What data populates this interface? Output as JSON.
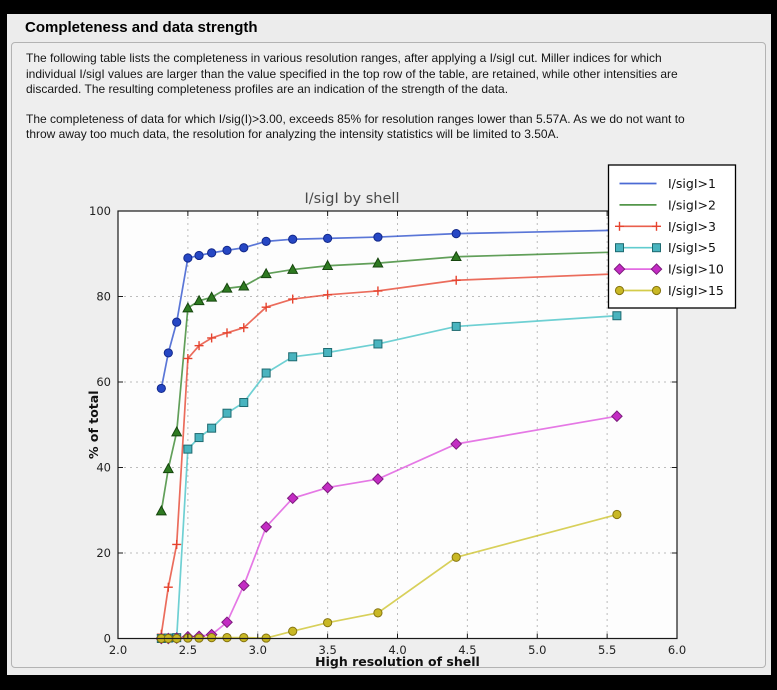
{
  "header": {
    "title": "Completeness and data strength"
  },
  "intro": {
    "p1": [
      "The following table lists the completeness in various resolution ranges, after applying a I/sigI cut. Miller indices for which",
      "individual I/sigI values are larger than the value specified in the top row of the table, are retained, while other intensities are",
      "discarded. The resulting completeness profiles are an indication of the strength of the data."
    ],
    "p2": [
      "The completeness of data for which I/sig(I)>3.00, exceeds  85% for resolution ranges lower than 5.57A. As we do not want to",
      "throw away too much data, the resolution for analyzing the intensity statistics will be limited to 3.50A."
    ]
  },
  "chart_data": {
    "type": "line",
    "title": "I/sigI by shell",
    "xlabel": "High resolution of shell",
    "ylabel": "% of total",
    "xlim": [
      2.0,
      6.0
    ],
    "ylim": [
      0,
      100
    ],
    "xticks": [
      2.0,
      2.5,
      3.0,
      3.5,
      4.0,
      4.5,
      5.0,
      5.5,
      6.0
    ],
    "yticks": [
      0,
      20,
      40,
      60,
      80,
      100
    ],
    "grid": true,
    "legend_position": "top-right",
    "x": [
      2.31,
      2.36,
      2.42,
      2.5,
      2.58,
      2.67,
      2.78,
      2.9,
      3.06,
      3.25,
      3.5,
      3.86,
      4.42,
      5.57
    ],
    "series": [
      {
        "label": "I/sigI>1",
        "color": "#2b50cc",
        "marker": "circle",
        "marker_fill": "#2647c4",
        "marker_edge": "#12288a",
        "legend_markers": false,
        "values": [
          58.5,
          66.8,
          74.0,
          89.0,
          89.6,
          90.2,
          90.8,
          91.4,
          92.9,
          93.4,
          93.6,
          93.9,
          94.7,
          95.5
        ]
      },
      {
        "label": "I/sigI>2",
        "color": "#35842a",
        "marker": "triangle",
        "marker_fill": "#2e7a21",
        "marker_edge": "#16450e",
        "legend_markers": false,
        "values": [
          29.8,
          39.7,
          48.3,
          77.3,
          79.0,
          79.8,
          81.9,
          82.4,
          85.3,
          86.3,
          87.2,
          87.8,
          89.3,
          90.4
        ]
      },
      {
        "label": "I/sigI>3",
        "color": "#e6432e",
        "marker": "plus",
        "marker_fill": "#e6432e",
        "marker_edge": "#e6432e",
        "legend_markers": true,
        "values": [
          1.0,
          12.0,
          22.0,
          65.5,
          68.5,
          70.3,
          71.5,
          72.7,
          77.5,
          79.4,
          80.4,
          81.3,
          83.8,
          85.3
        ]
      },
      {
        "label": "I/sigI>5",
        "color": "#45c3c7",
        "marker": "square",
        "marker_fill": "#49b4bf",
        "marker_edge": "#1e6a70",
        "legend_markers": true,
        "values": [
          0.0,
          0.1,
          0.2,
          44.3,
          47.0,
          49.2,
          52.7,
          55.2,
          62.1,
          65.9,
          66.9,
          68.9,
          73.0,
          75.5
        ]
      },
      {
        "label": "I/sigI>10",
        "color": "#de52de",
        "marker": "diamond",
        "marker_fill": "#c32cc3",
        "marker_edge": "#7d1b7d",
        "legend_markers": true,
        "values": [
          0.0,
          0.0,
          0.1,
          0.4,
          0.5,
          0.9,
          3.8,
          12.4,
          26.1,
          32.8,
          35.3,
          37.3,
          45.5,
          52.0
        ]
      },
      {
        "label": "I/sigI>15",
        "color": "#cdc32c",
        "marker": "circle",
        "marker_fill": "#c9b825",
        "marker_edge": "#857410",
        "legend_markers": true,
        "values": [
          0.0,
          0.0,
          0.0,
          0.1,
          0.1,
          0.2,
          0.2,
          0.2,
          0.1,
          1.7,
          3.7,
          6.0,
          19.0,
          29.0
        ]
      }
    ],
    "colors": {
      "plot_bg": "#fdfdfd",
      "grid": "#bcbcbc",
      "spine": "#1a1a1a",
      "title": "#4a4a4a",
      "tick_label": "#222222"
    }
  }
}
